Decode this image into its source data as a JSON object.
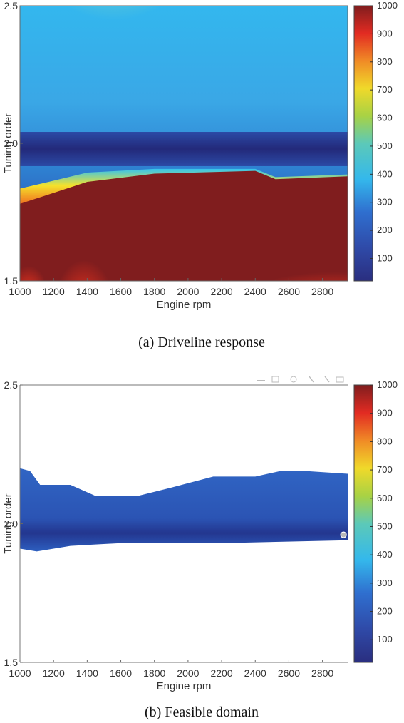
{
  "chart_data": [
    {
      "type": "heatmap",
      "caption": "(a) Driveline response",
      "xlabel": "Engine rpm",
      "ylabel": "Tuning order",
      "xlim": [
        1000,
        2950
      ],
      "ylim": [
        1.5,
        2.5
      ],
      "x_ticks": [
        "1000",
        "1200",
        "1400",
        "1600",
        "1800",
        "2000",
        "2200",
        "2400",
        "2600",
        "2800"
      ],
      "y_ticks": [
        "1.5",
        "2.0",
        "2.5"
      ],
      "colorbar": {
        "min": 20,
        "max": 1000,
        "ticks": [
          "100",
          "200",
          "300",
          "400",
          "500",
          "600",
          "700",
          "800",
          "900",
          "1000"
        ]
      },
      "description_values": {
        "high_response_region_upper_boundary_order": [
          {
            "rpm": 1000,
            "order": 1.78
          },
          {
            "rpm": 1200,
            "order": 1.82
          },
          {
            "rpm": 1400,
            "order": 1.86
          },
          {
            "rpm": 1800,
            "order": 1.89
          },
          {
            "rpm": 2400,
            "order": 1.9
          },
          {
            "rpm": 2520,
            "order": 1.87
          },
          {
            "rpm": 2950,
            "order": 1.88
          }
        ],
        "low_band_order": 1.98,
        "upper_region_level": 400
      }
    },
    {
      "type": "heatmap",
      "caption": "(b) Feasible domain",
      "xlabel": "Engine rpm",
      "ylabel": "Tuning order",
      "xlim": [
        1000,
        2950
      ],
      "ylim": [
        1.5,
        2.5
      ],
      "x_ticks": [
        "1000",
        "1200",
        "1400",
        "1600",
        "1800",
        "2000",
        "2200",
        "2400",
        "2600",
        "2800"
      ],
      "y_ticks": [
        "1.5",
        "2.0",
        "2.5"
      ],
      "colorbar": {
        "min": 20,
        "max": 1000,
        "ticks": [
          "100",
          "200",
          "300",
          "400",
          "500",
          "600",
          "700",
          "800",
          "900",
          "1000"
        ]
      },
      "feasible_domain": {
        "upper_boundary": [
          {
            "rpm": 1000,
            "order": 2.2
          },
          {
            "rpm": 1060,
            "order": 2.19
          },
          {
            "rpm": 1120,
            "order": 2.14
          },
          {
            "rpm": 1300,
            "order": 2.14
          },
          {
            "rpm": 1450,
            "order": 2.1
          },
          {
            "rpm": 1700,
            "order": 2.1
          },
          {
            "rpm": 1900,
            "order": 2.13
          },
          {
            "rpm": 2150,
            "order": 2.17
          },
          {
            "rpm": 2400,
            "order": 2.17
          },
          {
            "rpm": 2550,
            "order": 2.19
          },
          {
            "rpm": 2700,
            "order": 2.19
          },
          {
            "rpm": 2950,
            "order": 2.18
          }
        ],
        "lower_boundary": [
          {
            "rpm": 1000,
            "order": 1.91
          },
          {
            "rpm": 1100,
            "order": 1.9
          },
          {
            "rpm": 1300,
            "order": 1.92
          },
          {
            "rpm": 1600,
            "order": 1.93
          },
          {
            "rpm": 2200,
            "order": 1.93
          },
          {
            "rpm": 2950,
            "order": 1.94
          }
        ],
        "marker": {
          "rpm": 2925,
          "order": 1.96
        }
      }
    }
  ]
}
